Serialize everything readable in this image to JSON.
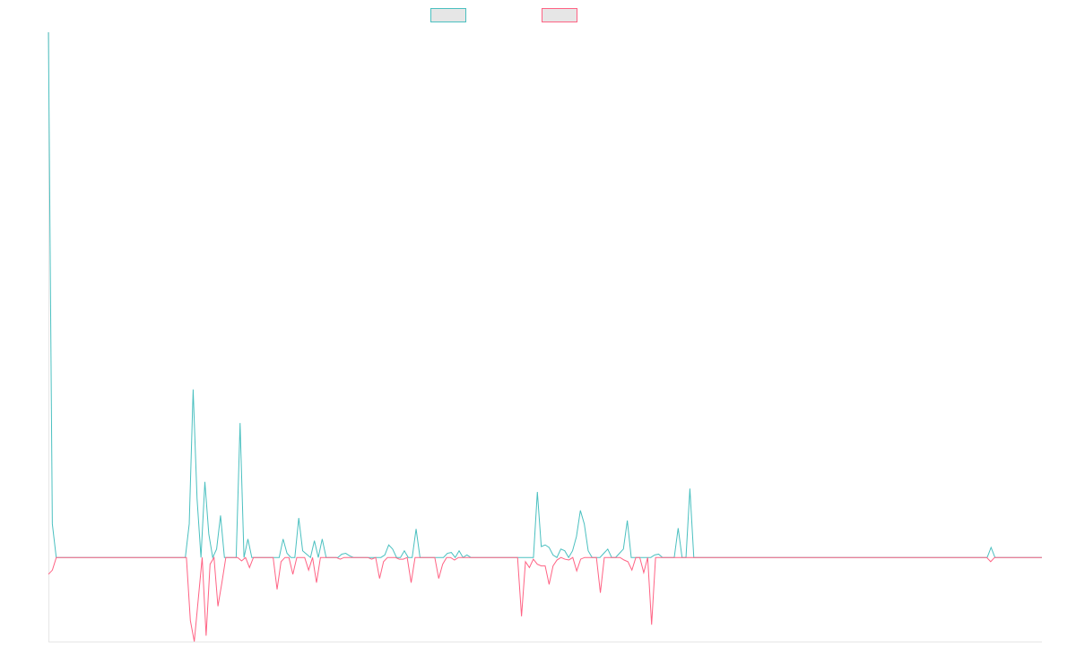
{
  "chart_data": {
    "type": "line",
    "title": "",
    "xlabel": "",
    "ylabel": "",
    "ylim": [
      -100,
      625
    ],
    "grid": false,
    "legend_position": "top",
    "colors": {
      "positive": "#4bc0c0",
      "negative": "#ff6384",
      "axis": "#e6e6e6",
      "swatch_fill": "#e6e6e6"
    },
    "series": [
      {
        "name": "",
        "color": "#4bc0c0",
        "values": [
          625,
          40,
          0,
          0,
          0,
          0,
          0,
          0,
          0,
          0,
          0,
          0,
          0,
          0,
          0,
          0,
          0,
          0,
          0,
          0,
          0,
          0,
          0,
          0,
          0,
          0,
          0,
          0,
          0,
          0,
          0,
          0,
          0,
          0,
          0,
          0,
          40,
          200,
          70,
          0,
          90,
          28,
          0,
          10,
          50,
          0,
          0,
          0,
          0,
          160,
          0,
          22,
          0,
          0,
          0,
          0,
          0,
          0,
          0,
          0,
          22,
          5,
          0,
          0,
          47,
          8,
          4,
          0,
          20,
          0,
          22,
          0,
          0,
          0,
          0,
          4,
          5,
          2,
          0,
          0,
          0,
          0,
          0,
          0,
          0,
          0,
          3,
          15,
          10,
          0,
          0,
          8,
          0,
          0,
          34,
          0,
          0,
          0,
          0,
          0,
          0,
          0,
          5,
          6,
          0,
          8,
          0,
          3,
          0,
          0,
          0,
          0,
          0,
          0,
          0,
          0,
          0,
          0,
          0,
          0,
          0,
          0,
          0,
          0,
          0,
          78,
          13,
          15,
          12,
          3,
          0,
          10,
          8,
          0,
          8,
          25,
          56,
          40,
          8,
          0,
          0,
          0,
          5,
          10,
          0,
          0,
          5,
          10,
          44,
          0,
          0,
          0,
          0,
          0,
          0,
          3,
          4,
          0,
          0,
          0,
          0,
          35,
          0,
          0,
          82,
          0,
          0,
          0,
          0,
          0,
          0,
          0,
          0,
          0,
          0,
          0,
          0,
          0,
          0,
          0,
          0,
          0,
          0,
          0,
          0,
          0,
          0,
          0,
          0,
          0,
          0,
          0,
          0,
          0,
          0,
          0,
          0,
          0,
          0,
          0,
          0,
          0,
          0,
          0,
          0,
          0,
          0,
          0,
          0,
          0,
          0,
          0,
          0,
          0,
          0,
          0,
          0,
          0,
          0,
          0,
          0,
          0,
          0,
          0,
          0,
          0,
          0,
          0,
          0,
          0,
          0,
          0,
          0,
          0,
          0,
          0,
          0,
          0,
          0,
          0,
          0,
          12,
          0,
          0,
          0,
          0,
          0,
          0,
          0,
          0,
          0,
          0,
          0,
          0,
          0
        ]
      },
      {
        "name": "",
        "color": "#ff6384",
        "values": [
          -20,
          -15,
          0,
          0,
          0,
          0,
          0,
          0,
          0,
          0,
          0,
          0,
          0,
          0,
          0,
          0,
          0,
          0,
          0,
          0,
          0,
          0,
          0,
          0,
          0,
          0,
          0,
          0,
          0,
          0,
          0,
          0,
          0,
          0,
          0,
          0,
          -75,
          -100,
          -50,
          0,
          -93,
          -8,
          0,
          -58,
          -30,
          0,
          0,
          0,
          0,
          -4,
          0,
          -12,
          0,
          0,
          0,
          0,
          0,
          0,
          -38,
          -5,
          0,
          0,
          -20,
          0,
          0,
          0,
          -15,
          0,
          -30,
          0,
          0,
          0,
          0,
          0,
          -2,
          0,
          0,
          0,
          0,
          0,
          0,
          0,
          -2,
          0,
          -25,
          -5,
          0,
          0,
          0,
          -2,
          -2,
          0,
          -30,
          0,
          0,
          0,
          0,
          0,
          0,
          -25,
          -8,
          0,
          0,
          -3,
          0,
          0,
          0,
          0,
          0,
          0,
          0,
          0,
          0,
          0,
          0,
          0,
          0,
          0,
          0,
          0,
          -70,
          -5,
          -12,
          -2,
          -8,
          -10,
          -10,
          -32,
          -10,
          -3,
          0,
          -2,
          -3,
          0,
          -16,
          -2,
          0,
          0,
          0,
          0,
          -42,
          0,
          0,
          0,
          0,
          0,
          -3,
          -5,
          -15,
          0,
          0,
          -18,
          0,
          -80,
          0,
          0,
          0,
          0,
          0,
          0,
          0,
          0,
          0,
          0,
          0,
          0,
          0,
          0,
          0,
          0,
          0,
          0,
          0,
          0,
          0,
          0,
          0,
          0,
          0,
          0,
          0,
          0,
          0,
          0,
          0,
          0,
          0,
          0,
          0,
          0,
          0,
          0,
          0,
          0,
          0,
          0,
          0,
          0,
          0,
          0,
          0,
          0,
          0,
          0,
          0,
          0,
          0,
          0,
          0,
          0,
          0,
          0,
          0,
          0,
          0,
          0,
          0,
          0,
          0,
          0,
          0,
          0,
          0,
          0,
          0,
          0,
          0,
          0,
          0,
          0,
          0,
          0,
          0,
          0,
          0,
          0,
          0,
          0,
          0,
          -5,
          0,
          0,
          0,
          0,
          0,
          0,
          0,
          0,
          0,
          0,
          0,
          0,
          0
        ]
      }
    ]
  }
}
